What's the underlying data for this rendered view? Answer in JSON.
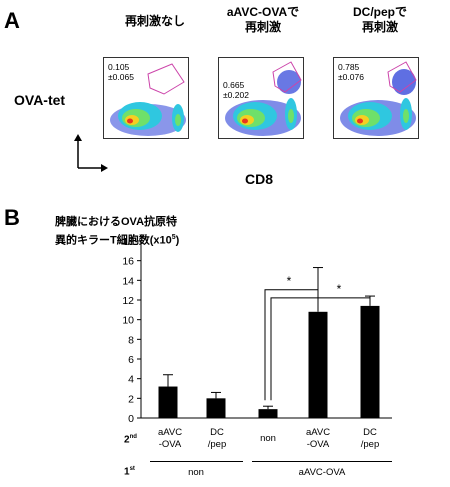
{
  "panel_a": {
    "letter": "A",
    "conditions": [
      {
        "title": "再刺激なし",
        "gate_value": "0.105\n±0.065"
      },
      {
        "title": "aAVC-OVAで\n再刺激",
        "gate_value": "0.665\n±0.202"
      },
      {
        "title": "DC/pepで\n再刺激",
        "gate_value": "0.785\n±0.076"
      }
    ],
    "y_axis_label": "OVA-tet",
    "x_axis_label": "CD8"
  },
  "panel_b": {
    "letter": "B",
    "y_title": "脾臓におけるOVA抗原特\n異的キラーT細胞数(x10",
    "y_title_exp": "5",
    "y_title_close": ")",
    "row2_label": "2",
    "row2_sup": "nd",
    "row1_label": "1",
    "row1_sup": "st",
    "row2_items": [
      "aAVC\n-OVA",
      "DC\n/pep",
      "non",
      "aAVC\n-OVA",
      "DC\n/pep"
    ],
    "row1_groups": [
      "non",
      "aAVC-OVA"
    ],
    "significance_marks": [
      "*",
      "*"
    ]
  },
  "chart_data": {
    "type": "bar",
    "categories": [
      "aAVC-OVA",
      "DC/pep",
      "non",
      "aAVC-OVA",
      "DC/pep"
    ],
    "values": [
      3.2,
      2.0,
      0.9,
      10.8,
      11.4
    ],
    "errors": [
      1.2,
      0.6,
      0.3,
      4.5,
      1.0
    ],
    "ylim": [
      0,
      18
    ],
    "yticks": [
      0,
      2,
      4,
      6,
      8,
      10,
      12,
      14,
      16,
      18
    ],
    "bar_color": "#000000",
    "grid": false
  }
}
